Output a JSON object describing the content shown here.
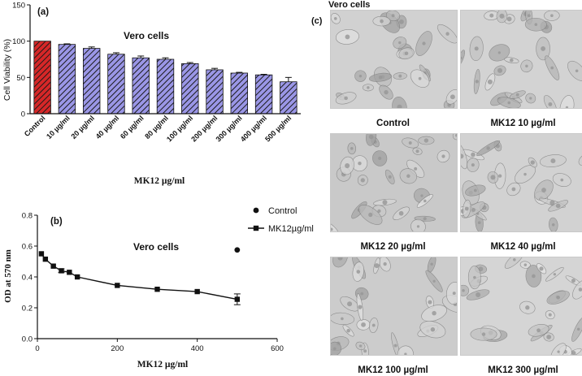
{
  "colors": {
    "control_bar": "#d62728",
    "treated_bar": "#9a96e6",
    "hatch": "#1a1a1a",
    "line": "#111111"
  },
  "chart_data": [
    {
      "type": "bar",
      "panel_label": "(a)",
      "annotation": "Vero cells",
      "ylabel": "Cell Viability (%)",
      "xlabel": "MK12 µg/ml",
      "ylim": [
        0,
        150
      ],
      "yticks": [
        "0",
        "50",
        "100",
        "150"
      ],
      "categories": [
        "Control",
        "10 µg/ml",
        "20 µg/ml",
        "40 µg/ml",
        "60 µg/ml",
        "80 µg/ml",
        "100 µg/ml",
        "200 µg/ml",
        "300 µg/ml",
        "400 µg/ml",
        "500 µg/ml"
      ],
      "values": [
        100,
        95.5,
        90,
        82,
        77,
        75,
        69,
        60.5,
        56,
        53.5,
        44
      ],
      "errors": [
        0,
        0.8,
        2,
        2,
        2.5,
        2,
        1.5,
        2,
        1,
        0.8,
        6
      ],
      "grid": false
    },
    {
      "type": "line",
      "panel_label": "(b)",
      "annotation": "Vero cells",
      "ylabel": "OD at 570 nm",
      "xlabel": "MK12 µg/ml",
      "xlim": [
        0,
        600
      ],
      "ylim": [
        0,
        0.8
      ],
      "xticks": [
        "0",
        "200",
        "400",
        "600"
      ],
      "yticks": [
        "0.0",
        "0.2",
        "0.4",
        "0.6",
        "0.8"
      ],
      "legend": [
        "Control",
        "MK12µg/ml"
      ],
      "legend_position": "top-right",
      "series": [
        {
          "name": "Control",
          "marker": "circle",
          "x": [
            500
          ],
          "y": [
            0.575
          ],
          "err": [
            0
          ]
        },
        {
          "name": "MK12µg/ml",
          "marker": "square",
          "x": [
            10,
            20,
            40,
            60,
            80,
            100,
            200,
            300,
            400,
            500
          ],
          "y": [
            0.55,
            0.515,
            0.47,
            0.44,
            0.43,
            0.4,
            0.345,
            0.32,
            0.305,
            0.255
          ],
          "err": [
            0,
            0,
            0,
            0.012,
            0,
            0,
            0,
            0,
            0,
            0.035
          ]
        }
      ],
      "grid": false
    }
  ],
  "panel_c": {
    "letter": "(c)",
    "title": "Vero cells",
    "images": [
      {
        "caption": "Control"
      },
      {
        "caption": "MK12 10 µg/ml"
      },
      {
        "caption": "MK12 20 µg/ml"
      },
      {
        "caption": "MK12 40 µg/ml"
      },
      {
        "caption": "MK12 100 µg/ml"
      },
      {
        "caption": "MK12 300 µg/ml"
      }
    ]
  }
}
